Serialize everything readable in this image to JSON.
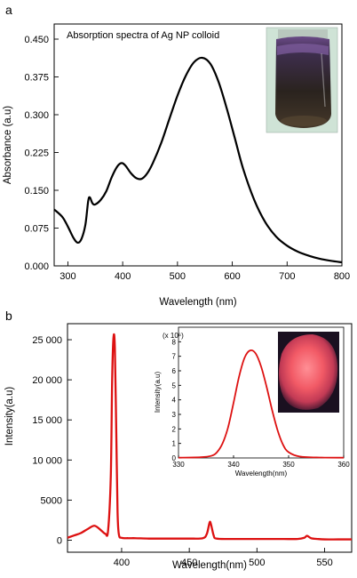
{
  "panels": {
    "a": {
      "letter": "a"
    },
    "b": {
      "letter": "b"
    }
  },
  "chart_data": [
    {
      "id": "a",
      "type": "line",
      "title": "Absorption spectra of Ag NP colloid",
      "xlabel": "Wavelength (nm)",
      "ylabel": "Absorbance (a.u)",
      "xlim": [
        275,
        800
      ],
      "ylim": [
        0,
        0.48
      ],
      "xticks": [
        300,
        400,
        500,
        600,
        700,
        800
      ],
      "yticks": [
        0,
        0.075,
        0.15,
        0.225,
        0.3,
        0.375,
        0.45
      ],
      "ytick_labels": [
        "0.000",
        "0.075",
        "0.150",
        "0.225",
        "0.300",
        "0.375",
        "0.450"
      ],
      "color": "#000000",
      "x": [
        275,
        290,
        300,
        310,
        318,
        325,
        332,
        337,
        340,
        345,
        350,
        360,
        370,
        380,
        390,
        398,
        405,
        415,
        425,
        435,
        445,
        455,
        470,
        485,
        500,
        515,
        530,
        545,
        560,
        575,
        590,
        605,
        620,
        640,
        660,
        680,
        700,
        720,
        740,
        760,
        780,
        800
      ],
      "y": [
        0.112,
        0.097,
        0.078,
        0.056,
        0.046,
        0.054,
        0.082,
        0.128,
        0.136,
        0.124,
        0.122,
        0.131,
        0.148,
        0.176,
        0.197,
        0.204,
        0.199,
        0.184,
        0.174,
        0.173,
        0.184,
        0.204,
        0.243,
        0.291,
        0.338,
        0.377,
        0.404,
        0.413,
        0.401,
        0.365,
        0.312,
        0.252,
        0.192,
        0.131,
        0.087,
        0.058,
        0.04,
        0.028,
        0.02,
        0.014,
        0.01,
        0.007
      ]
    },
    {
      "id": "b",
      "type": "line",
      "xlabel": "Wavelength(nm)",
      "ylabel": "Intensity(a.u)",
      "xlim": [
        360,
        570
      ],
      "ylim": [
        -1500,
        27000
      ],
      "xticks": [
        400,
        450,
        500,
        550
      ],
      "yticks": [
        0,
        5000,
        10000,
        15000,
        20000,
        25000
      ],
      "ytick_labels": [
        "0",
        "5000",
        "10 000",
        "15 000",
        "20 000",
        "25 000"
      ],
      "color": "#dd1111",
      "x": [
        360,
        365,
        370,
        375,
        380,
        385,
        388,
        390,
        392,
        393,
        394,
        395,
        396,
        397,
        398,
        400,
        405,
        410,
        420,
        430,
        440,
        450,
        460,
        463,
        465,
        466,
        468,
        470,
        480,
        490,
        500,
        510,
        520,
        530,
        535,
        537,
        540,
        545,
        550,
        560,
        570
      ],
      "y": [
        300,
        600,
        900,
        1400,
        1800,
        1200,
        800,
        1200,
        8000,
        20000,
        25300,
        24000,
        14000,
        3500,
        700,
        300,
        250,
        250,
        200,
        200,
        200,
        200,
        250,
        800,
        2200,
        2000,
        600,
        200,
        150,
        150,
        150,
        150,
        150,
        150,
        300,
        550,
        250,
        150,
        100,
        100,
        100
      ],
      "inset": {
        "type": "line",
        "xlabel": "Wavelength(nm)",
        "ylabel": "Intensity(a.u)",
        "yscale_label": "(x 10⁶)",
        "xlim": [
          330,
          360
        ],
        "ylim": [
          0,
          9
        ],
        "xticks": [
          330,
          340,
          350,
          360
        ],
        "yticks": [
          0,
          1,
          2,
          3,
          4,
          5,
          6,
          7,
          8
        ],
        "color": "#dd1111",
        "x": [
          330,
          334,
          336,
          337,
          338,
          339,
          340,
          341,
          342,
          343,
          344,
          345,
          346,
          347,
          348,
          349,
          350,
          352,
          356,
          360
        ],
        "y": [
          0.02,
          0.05,
          0.15,
          0.4,
          1.0,
          2.1,
          3.8,
          5.6,
          6.9,
          7.4,
          7.2,
          6.3,
          4.9,
          3.3,
          1.9,
          0.9,
          0.4,
          0.1,
          0.03,
          0.02
        ]
      }
    }
  ]
}
